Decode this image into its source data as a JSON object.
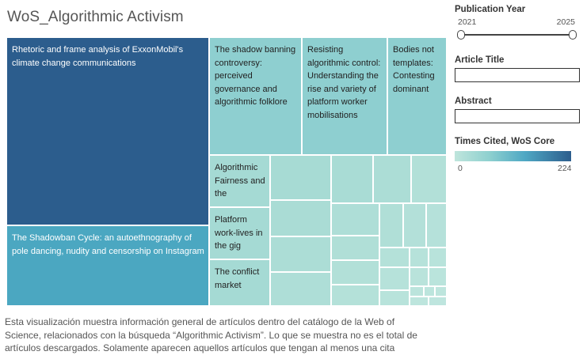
{
  "title": "WoS_Algorithmic Activism",
  "description": "Esta visualización muestra información general de artículos dentro del catálogo de la Web of Science, relacionados con la búsqueda “Algorithmic Activism”. Lo que se muestra no es el total de artículos descargados. Solamente aparecen aquellos artículos que tengan al menos una cita",
  "colors": {
    "low": "#bfe5dc",
    "high": "#2c5d8d"
  },
  "treemap": {
    "labeled_tiles": [
      {
        "label": "Rhetoric and frame analysis of ExxonMobil's climate change communications",
        "color": "#2c5d8d",
        "text_color": "#ffffff"
      },
      {
        "label": "The Shadowban Cycle: an autoethnography of pole dancing, nudity and censorship on Instagram",
        "color": "#4ba7c1",
        "text_color": "#ffffff"
      },
      {
        "label": "The shadow banning controversy: perceived governance and algorithmic folklore",
        "color": "#8ecfd0",
        "text_color": "#222222"
      },
      {
        "label": "Resisting algorithmic control: Understanding the rise and variety of platform worker mobilisations",
        "color": "#8ecfd0",
        "text_color": "#222222"
      },
      {
        "label": "Bodies not templates: Contesting dominant",
        "color": "#8ecfd0",
        "text_color": "#222222"
      },
      {
        "label": "Algorithmic Fairness and the",
        "color": "#a5dad4",
        "text_color": "#222222"
      },
      {
        "label": "Platform work-lives in the gig",
        "color": "#a5dad4",
        "text_color": "#222222"
      },
      {
        "label": "The conflict market",
        "color": "#a5dad4",
        "text_color": "#222222"
      }
    ]
  },
  "filters": {
    "publication_year": {
      "title": "Publication Year",
      "min": "2021",
      "max": "2025"
    },
    "article_title": {
      "title": "Article Title",
      "value": ""
    },
    "abstract": {
      "title": "Abstract",
      "value": ""
    },
    "times_cited": {
      "title": "Times Cited, WoS Core",
      "min": "0",
      "max": "224"
    }
  }
}
